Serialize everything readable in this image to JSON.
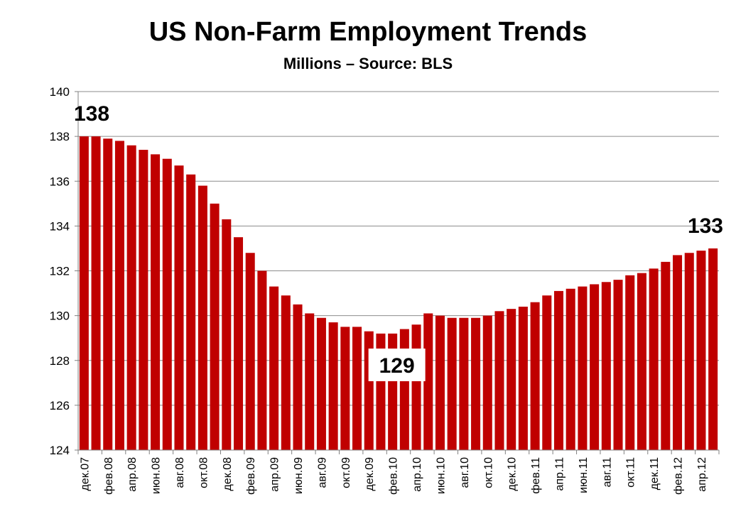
{
  "chart_data": {
    "type": "bar",
    "title": "US Non-Farm Employment Trends",
    "subtitle": "Millions – Source: BLS",
    "xlabel": "",
    "ylabel": "",
    "ylim": [
      124,
      140
    ],
    "yticks": [
      124,
      126,
      128,
      130,
      132,
      134,
      136,
      138,
      140
    ],
    "grid": true,
    "bar_color": "#C00000",
    "categories": [
      "дек.07",
      "янв.08",
      "фев.08",
      "мар.08",
      "апр.08",
      "май.08",
      "июн.08",
      "июл.08",
      "авг.08",
      "сен.08",
      "окт.08",
      "ноя.08",
      "дек.08",
      "янв.09",
      "фев.09",
      "мар.09",
      "апр.09",
      "май.09",
      "июн.09",
      "июл.09",
      "авг.09",
      "сен.09",
      "окт.09",
      "ноя.09",
      "дек.09",
      "янв.10",
      "фев.10",
      "мар.10",
      "апр.10",
      "май.10",
      "июн.10",
      "июл.10",
      "авг.10",
      "сен.10",
      "окт.10",
      "ноя.10",
      "дек.10",
      "янв.11",
      "фев.11",
      "мар.11",
      "апр.11",
      "май.11",
      "июн.11",
      "июл.11",
      "авг.11",
      "сен.11",
      "окт.11",
      "ноя.11",
      "дек.11",
      "янв.12",
      "фев.12",
      "мар.12",
      "апр.12",
      "май.12"
    ],
    "visible_tick_labels": [
      "дек.07",
      "фев.08",
      "апр.08",
      "июн.08",
      "авг.08",
      "окт.08",
      "дек.08",
      "фев.09",
      "апр.09",
      "июн.09",
      "авг.09",
      "окт.09",
      "дек.09",
      "фев.10",
      "апр.10",
      "июн.10",
      "авг.10",
      "окт.10",
      "дек.10",
      "фев.11",
      "апр.11",
      "июн.11",
      "авг.11",
      "окт.11",
      "дек.11",
      "фев.12",
      "апр.12"
    ],
    "series": [
      {
        "values": [
          138.0,
          138.0,
          137.9,
          137.8,
          137.6,
          137.4,
          137.2,
          137.0,
          136.7,
          136.3,
          135.8,
          135.0,
          134.3,
          133.5,
          132.8,
          132.0,
          131.3,
          130.9,
          130.5,
          130.1,
          129.9,
          129.7,
          129.5,
          129.5,
          129.3,
          129.2,
          129.2,
          129.4,
          129.6,
          130.1,
          130.0,
          129.9,
          129.9,
          129.9,
          130.0,
          130.2,
          130.3,
          130.4,
          130.6,
          130.9,
          131.1,
          131.2,
          131.3,
          131.4,
          131.5,
          131.6,
          131.8,
          131.9,
          132.1,
          132.4,
          132.7,
          132.8,
          132.9,
          133.0
        ]
      }
    ],
    "annotations": [
      {
        "text": "138",
        "index": 0,
        "style": "plain"
      },
      {
        "text": "129",
        "index": 26,
        "style": "boxed"
      },
      {
        "text": "133",
        "index": 53,
        "style": "plain"
      }
    ]
  }
}
